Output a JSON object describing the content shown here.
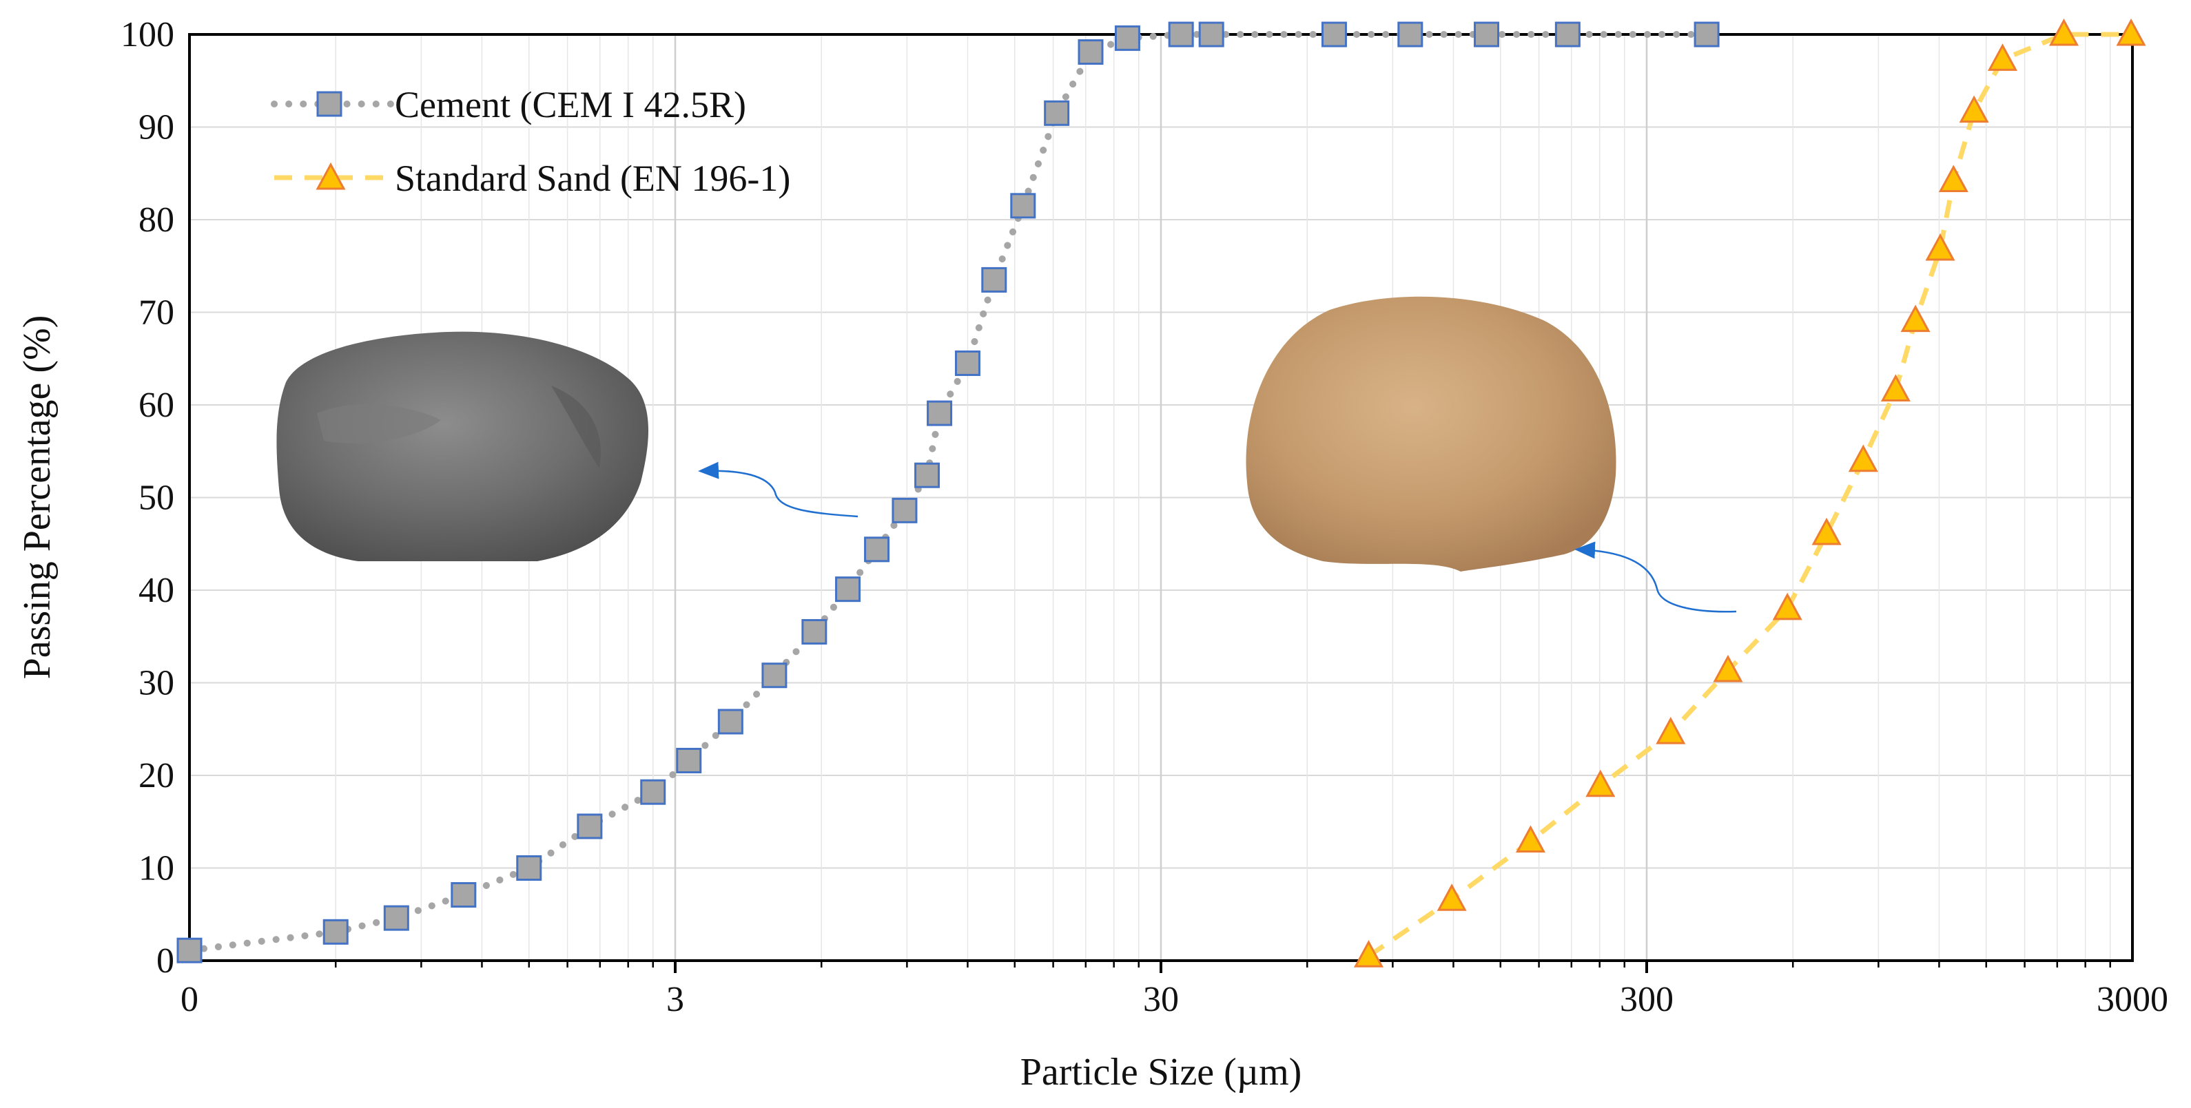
{
  "chart_data": {
    "type": "scatter",
    "title": "",
    "xlabel": "Particle Size (µm)",
    "ylabel": "Passing Percentage (%)",
    "xscale": "log",
    "xlim": [
      0.3,
      3000
    ],
    "ylim": [
      0,
      100
    ],
    "x_tick_labels": [
      {
        "value": 0.3,
        "label": "0"
      },
      {
        "value": 3,
        "label": "3"
      },
      {
        "value": 30,
        "label": "30"
      },
      {
        "value": 300,
        "label": "300"
      },
      {
        "value": 3000,
        "label": "3000"
      }
    ],
    "y_ticks": [
      0,
      10,
      20,
      30,
      40,
      50,
      60,
      70,
      80,
      90,
      100
    ],
    "grid": true,
    "legend_position": "top-left",
    "series": [
      {
        "name": "Cement (CEM I 42.5R)",
        "marker": "square",
        "line_style": "dotted",
        "color": "#a6a6a6",
        "marker_fill": "#a6a6a6",
        "marker_stroke": "#4472c4",
        "x": [
          0.3,
          0.6,
          0.8,
          1.1,
          1.5,
          2.0,
          2.7,
          3.2,
          3.9,
          4.8,
          5.8,
          6.8,
          7.8,
          8.9,
          9.9,
          10.5,
          12.0,
          13.6,
          15.6,
          18.3,
          21.5,
          25.6,
          33.0,
          38.1,
          68.2,
          97.8,
          140.4,
          206.3,
          398.7
        ],
        "y": [
          1.1,
          3.1,
          4.6,
          7.1,
          10.0,
          14.5,
          18.2,
          21.6,
          25.8,
          30.8,
          35.5,
          40.1,
          44.4,
          48.6,
          52.4,
          59.1,
          64.5,
          73.5,
          81.5,
          91.5,
          98.1,
          99.6,
          100,
          100,
          100,
          100,
          100,
          100,
          100
        ]
      },
      {
        "name": "Standard Sand (EN 196-1)",
        "marker": "triangle",
        "line_style": "dashed",
        "color": "#ffd966",
        "marker_fill": "#ffc000",
        "marker_stroke": "#ed7d31",
        "x": [
          80.3,
          119.1,
          173.0,
          240.9,
          336.1,
          441.0,
          584.5,
          703.8,
          837.4,
          976.6,
          1072.6,
          1206.2,
          1284.6,
          1416.0,
          1620.7,
          2167.6,
          2981.0
        ],
        "y": [
          0.5,
          6.6,
          12.9,
          18.9,
          24.6,
          31.3,
          38.0,
          46.1,
          54.0,
          61.6,
          69.1,
          76.8,
          84.2,
          91.7,
          97.3,
          100,
          100
        ]
      }
    ]
  }
}
